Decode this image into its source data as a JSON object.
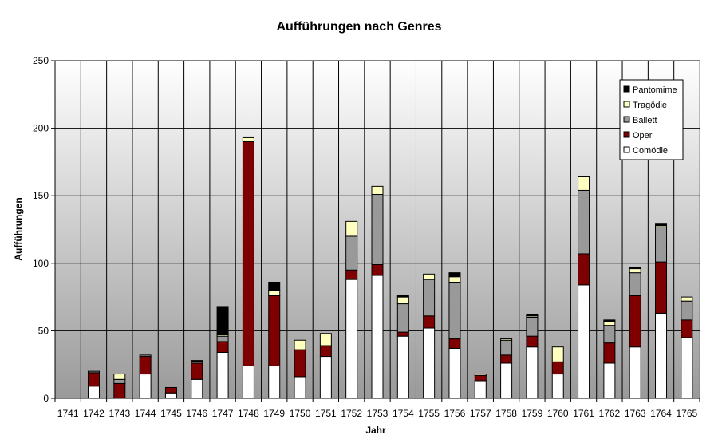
{
  "chart_data": {
    "type": "bar",
    "stacked": true,
    "title": "Aufführungen nach Genres",
    "xlabel": "Jahr",
    "ylabel": "Aufführungen",
    "ylim": [
      0,
      250
    ],
    "yticks": [
      "0",
      "50",
      "100",
      "150",
      "200",
      "250"
    ],
    "grid": true,
    "legend_position": "top-right",
    "categories": [
      "1741",
      "1742",
      "1743",
      "1744",
      "1745",
      "1746",
      "1747",
      "1748",
      "1749",
      "1750",
      "1751",
      "1752",
      "1753",
      "1754",
      "1755",
      "1756",
      "1757",
      "1758",
      "1759",
      "1760",
      "1761",
      "1762",
      "1763",
      "1764",
      "1765"
    ],
    "series": [
      {
        "name": "Comödie",
        "color": "#ffffff",
        "values": [
          0,
          9,
          0,
          18,
          4,
          14,
          34,
          24,
          24,
          16,
          31,
          88,
          91,
          46,
          52,
          37,
          13,
          26,
          38,
          18,
          84,
          26,
          38,
          63,
          45
        ]
      },
      {
        "name": "Oper",
        "color": "#7f0000",
        "values": [
          0,
          10,
          11,
          13,
          4,
          12,
          8,
          166,
          52,
          20,
          8,
          7,
          8,
          3,
          9,
          7,
          4,
          6,
          8,
          9,
          23,
          15,
          38,
          38,
          13
        ]
      },
      {
        "name": "Ballett",
        "color": "#999999",
        "values": [
          0,
          1,
          3,
          1,
          0,
          1,
          4,
          0,
          0,
          0,
          0,
          25,
          52,
          21,
          27,
          42,
          0,
          11,
          14,
          0,
          47,
          13,
          17,
          26,
          14
        ]
      },
      {
        "name": "Tragödie",
        "color": "#ffffc0",
        "values": [
          0,
          0,
          4,
          0,
          0,
          0,
          1,
          3,
          4,
          7,
          9,
          11,
          6,
          5,
          4,
          4,
          1,
          1,
          1,
          11,
          10,
          3,
          3,
          1,
          3
        ]
      },
      {
        "name": "Pantomime",
        "color": "#000000",
        "values": [
          0,
          0,
          0,
          0,
          0,
          1,
          21,
          0,
          6,
          0,
          0,
          0,
          0,
          1,
          0,
          3,
          0,
          0,
          1,
          0,
          0,
          1,
          1,
          1,
          0
        ]
      }
    ],
    "legend_order": [
      "Pantomime",
      "Tragödie",
      "Ballett",
      "Oper",
      "Comödie"
    ]
  }
}
